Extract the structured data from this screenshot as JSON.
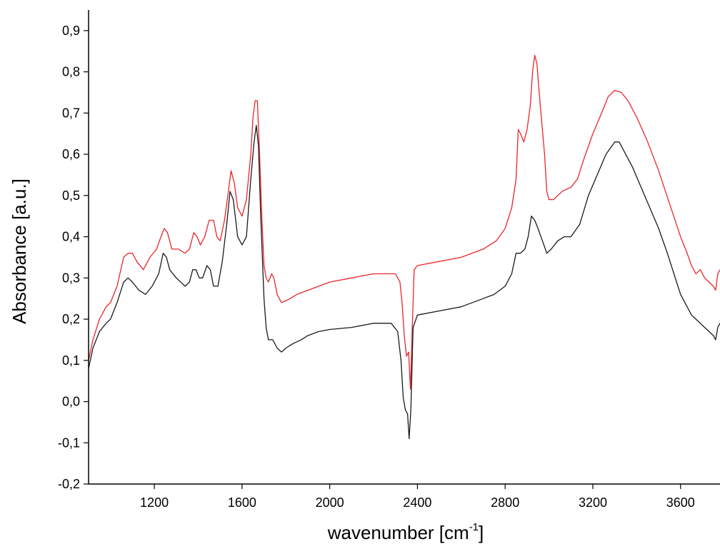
{
  "chart_data": {
    "type": "line",
    "title": "",
    "xlabel": "wavenumber [cm",
    "xlabel_sup": "-1",
    "xlabel_suffix": "]",
    "ylabel": "Absorbance [a.u.]",
    "xlim": [
      900,
      3780
    ],
    "ylim": [
      -0.2,
      0.95
    ],
    "x_ticks": [
      {
        "value": 1200,
        "label": "1200"
      },
      {
        "value": 1600,
        "label": "1600"
      },
      {
        "value": 2000,
        "label": "2000"
      },
      {
        "value": 2400,
        "label": "2400"
      },
      {
        "value": 2800,
        "label": "2800"
      },
      {
        "value": 3200,
        "label": "3200"
      },
      {
        "value": 3600,
        "label": "3600"
      }
    ],
    "y_ticks": [
      {
        "value": -0.2,
        "label": "-0,2"
      },
      {
        "value": -0.1,
        "label": "-0,1"
      },
      {
        "value": 0.0,
        "label": "0,0"
      },
      {
        "value": 0.1,
        "label": "0,1"
      },
      {
        "value": 0.2,
        "label": "0,2"
      },
      {
        "value": 0.3,
        "label": "0,3"
      },
      {
        "value": 0.4,
        "label": "0,4"
      },
      {
        "value": 0.5,
        "label": "0,5"
      },
      {
        "value": 0.6,
        "label": "0,6"
      },
      {
        "value": 0.7,
        "label": "0,7"
      },
      {
        "value": 0.8,
        "label": "0,8"
      },
      {
        "value": 0.9,
        "label": "0,9"
      }
    ],
    "grid": false,
    "legend": "none",
    "series": [
      {
        "color": "#e8262a",
        "points": [
          [
            900,
            0.1
          ],
          [
            920,
            0.15
          ],
          [
            950,
            0.2
          ],
          [
            980,
            0.23
          ],
          [
            1000,
            0.24
          ],
          [
            1030,
            0.28
          ],
          [
            1060,
            0.35
          ],
          [
            1080,
            0.36
          ],
          [
            1100,
            0.36
          ],
          [
            1120,
            0.34
          ],
          [
            1150,
            0.32
          ],
          [
            1180,
            0.35
          ],
          [
            1210,
            0.37
          ],
          [
            1230,
            0.4
          ],
          [
            1245,
            0.42
          ],
          [
            1260,
            0.41
          ],
          [
            1280,
            0.37
          ],
          [
            1310,
            0.37
          ],
          [
            1340,
            0.36
          ],
          [
            1360,
            0.37
          ],
          [
            1380,
            0.41
          ],
          [
            1395,
            0.4
          ],
          [
            1410,
            0.38
          ],
          [
            1430,
            0.4
          ],
          [
            1450,
            0.44
          ],
          [
            1470,
            0.44
          ],
          [
            1485,
            0.4
          ],
          [
            1500,
            0.39
          ],
          [
            1520,
            0.44
          ],
          [
            1535,
            0.5
          ],
          [
            1550,
            0.56
          ],
          [
            1565,
            0.53
          ],
          [
            1580,
            0.47
          ],
          [
            1600,
            0.45
          ],
          [
            1620,
            0.49
          ],
          [
            1640,
            0.6
          ],
          [
            1650,
            0.69
          ],
          [
            1660,
            0.73
          ],
          [
            1670,
            0.73
          ],
          [
            1680,
            0.6
          ],
          [
            1690,
            0.45
          ],
          [
            1700,
            0.33
          ],
          [
            1710,
            0.3
          ],
          [
            1720,
            0.29
          ],
          [
            1735,
            0.31
          ],
          [
            1745,
            0.3
          ],
          [
            1760,
            0.26
          ],
          [
            1780,
            0.24
          ],
          [
            1800,
            0.245
          ],
          [
            1820,
            0.25
          ],
          [
            1850,
            0.26
          ],
          [
            1900,
            0.27
          ],
          [
            1950,
            0.28
          ],
          [
            2000,
            0.29
          ],
          [
            2100,
            0.3
          ],
          [
            2200,
            0.31
          ],
          [
            2300,
            0.31
          ],
          [
            2320,
            0.29
          ],
          [
            2330,
            0.24
          ],
          [
            2340,
            0.16
          ],
          [
            2350,
            0.11
          ],
          [
            2360,
            0.12
          ],
          [
            2368,
            0.03
          ],
          [
            2376,
            0.17
          ],
          [
            2385,
            0.32
          ],
          [
            2400,
            0.33
          ],
          [
            2500,
            0.34
          ],
          [
            2600,
            0.35
          ],
          [
            2700,
            0.37
          ],
          [
            2760,
            0.39
          ],
          [
            2800,
            0.42
          ],
          [
            2830,
            0.47
          ],
          [
            2850,
            0.54
          ],
          [
            2860,
            0.66
          ],
          [
            2870,
            0.65
          ],
          [
            2885,
            0.63
          ],
          [
            2900,
            0.66
          ],
          [
            2915,
            0.72
          ],
          [
            2925,
            0.8
          ],
          [
            2935,
            0.84
          ],
          [
            2945,
            0.82
          ],
          [
            2960,
            0.72
          ],
          [
            2980,
            0.6
          ],
          [
            2990,
            0.51
          ],
          [
            3000,
            0.49
          ],
          [
            3020,
            0.49
          ],
          [
            3040,
            0.5
          ],
          [
            3060,
            0.51
          ],
          [
            3080,
            0.515
          ],
          [
            3100,
            0.52
          ],
          [
            3130,
            0.54
          ],
          [
            3160,
            0.59
          ],
          [
            3200,
            0.65
          ],
          [
            3240,
            0.7
          ],
          [
            3270,
            0.74
          ],
          [
            3300,
            0.755
          ],
          [
            3330,
            0.75
          ],
          [
            3360,
            0.73
          ],
          [
            3400,
            0.69
          ],
          [
            3450,
            0.63
          ],
          [
            3500,
            0.56
          ],
          [
            3550,
            0.48
          ],
          [
            3600,
            0.4
          ],
          [
            3630,
            0.36
          ],
          [
            3650,
            0.33
          ],
          [
            3670,
            0.31
          ],
          [
            3690,
            0.32
          ],
          [
            3710,
            0.3
          ],
          [
            3730,
            0.29
          ],
          [
            3750,
            0.28
          ],
          [
            3760,
            0.27
          ],
          [
            3770,
            0.31
          ],
          [
            3780,
            0.32
          ]
        ]
      },
      {
        "color": "#1a1a1a",
        "points": [
          [
            900,
            0.08
          ],
          [
            920,
            0.13
          ],
          [
            950,
            0.17
          ],
          [
            980,
            0.19
          ],
          [
            1000,
            0.2
          ],
          [
            1030,
            0.24
          ],
          [
            1060,
            0.29
          ],
          [
            1080,
            0.3
          ],
          [
            1100,
            0.29
          ],
          [
            1130,
            0.27
          ],
          [
            1160,
            0.26
          ],
          [
            1190,
            0.28
          ],
          [
            1220,
            0.31
          ],
          [
            1240,
            0.36
          ],
          [
            1255,
            0.35
          ],
          [
            1270,
            0.32
          ],
          [
            1300,
            0.3
          ],
          [
            1340,
            0.28
          ],
          [
            1360,
            0.29
          ],
          [
            1375,
            0.32
          ],
          [
            1390,
            0.32
          ],
          [
            1405,
            0.3
          ],
          [
            1420,
            0.3
          ],
          [
            1440,
            0.33
          ],
          [
            1455,
            0.32
          ],
          [
            1470,
            0.28
          ],
          [
            1490,
            0.28
          ],
          [
            1510,
            0.34
          ],
          [
            1530,
            0.43
          ],
          [
            1545,
            0.51
          ],
          [
            1560,
            0.49
          ],
          [
            1580,
            0.4
          ],
          [
            1600,
            0.38
          ],
          [
            1620,
            0.4
          ],
          [
            1640,
            0.54
          ],
          [
            1655,
            0.63
          ],
          [
            1665,
            0.67
          ],
          [
            1675,
            0.62
          ],
          [
            1685,
            0.45
          ],
          [
            1700,
            0.25
          ],
          [
            1710,
            0.18
          ],
          [
            1720,
            0.15
          ],
          [
            1740,
            0.15
          ],
          [
            1760,
            0.13
          ],
          [
            1780,
            0.12
          ],
          [
            1800,
            0.13
          ],
          [
            1830,
            0.14
          ],
          [
            1870,
            0.15
          ],
          [
            1900,
            0.16
          ],
          [
            1950,
            0.17
          ],
          [
            2000,
            0.175
          ],
          [
            2100,
            0.18
          ],
          [
            2200,
            0.19
          ],
          [
            2280,
            0.19
          ],
          [
            2310,
            0.17
          ],
          [
            2325,
            0.1
          ],
          [
            2335,
            0.01
          ],
          [
            2345,
            -0.02
          ],
          [
            2355,
            -0.03
          ],
          [
            2362,
            -0.09
          ],
          [
            2370,
            -0.02
          ],
          [
            2380,
            0.18
          ],
          [
            2400,
            0.21
          ],
          [
            2500,
            0.22
          ],
          [
            2600,
            0.23
          ],
          [
            2700,
            0.25
          ],
          [
            2750,
            0.26
          ],
          [
            2800,
            0.28
          ],
          [
            2830,
            0.31
          ],
          [
            2850,
            0.36
          ],
          [
            2870,
            0.36
          ],
          [
            2890,
            0.37
          ],
          [
            2905,
            0.4
          ],
          [
            2920,
            0.45
          ],
          [
            2935,
            0.44
          ],
          [
            2950,
            0.42
          ],
          [
            2970,
            0.39
          ],
          [
            2990,
            0.36
          ],
          [
            3010,
            0.37
          ],
          [
            3040,
            0.39
          ],
          [
            3070,
            0.4
          ],
          [
            3100,
            0.4
          ],
          [
            3140,
            0.43
          ],
          [
            3180,
            0.5
          ],
          [
            3220,
            0.55
          ],
          [
            3260,
            0.6
          ],
          [
            3300,
            0.63
          ],
          [
            3320,
            0.63
          ],
          [
            3340,
            0.61
          ],
          [
            3380,
            0.57
          ],
          [
            3420,
            0.52
          ],
          [
            3460,
            0.47
          ],
          [
            3500,
            0.42
          ],
          [
            3540,
            0.36
          ],
          [
            3570,
            0.31
          ],
          [
            3600,
            0.26
          ],
          [
            3630,
            0.23
          ],
          [
            3650,
            0.21
          ],
          [
            3670,
            0.2
          ],
          [
            3690,
            0.19
          ],
          [
            3710,
            0.18
          ],
          [
            3730,
            0.17
          ],
          [
            3750,
            0.16
          ],
          [
            3760,
            0.15
          ],
          [
            3770,
            0.18
          ],
          [
            3780,
            0.19
          ]
        ]
      }
    ]
  }
}
